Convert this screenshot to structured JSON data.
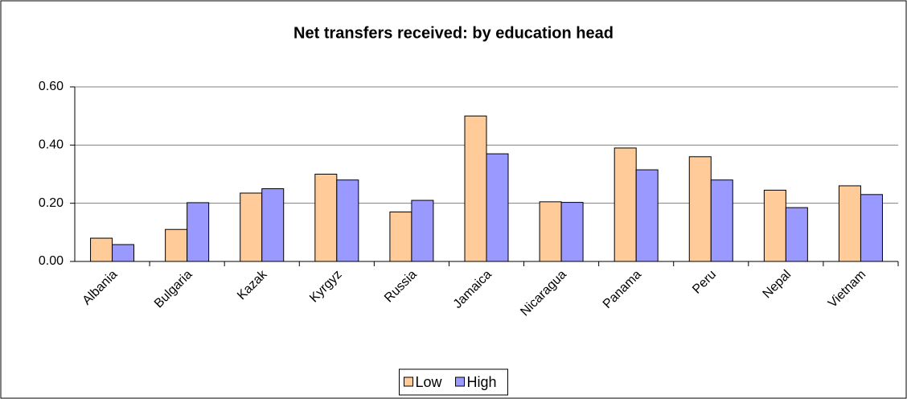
{
  "chart_data": {
    "type": "bar",
    "title": "Net transfers received: by education head",
    "categories": [
      "Albania",
      "Bulgaria",
      "Kazak",
      "Kyrgyz",
      "Russia",
      "Jamaica",
      "Nicaragua",
      "Panama",
      "Peru",
      "Nepal",
      "Vietnam"
    ],
    "series": [
      {
        "name": "Low",
        "color": "#ffcc99",
        "values": [
          0.08,
          0.11,
          0.235,
          0.3,
          0.17,
          0.5,
          0.205,
          0.39,
          0.36,
          0.245,
          0.26
        ]
      },
      {
        "name": "High",
        "color": "#9999ff",
        "values": [
          0.058,
          0.202,
          0.25,
          0.28,
          0.21,
          0.37,
          0.203,
          0.315,
          0.28,
          0.185,
          0.23
        ]
      }
    ],
    "ylim": [
      0,
      0.6
    ],
    "yticks": [
      {
        "value": 0,
        "label": "0.00"
      },
      {
        "value": 0.2,
        "label": "0.20"
      },
      {
        "value": 0.4,
        "label": "0.40"
      },
      {
        "value": 0.6,
        "label": "0.60"
      }
    ],
    "grid": true,
    "legend": "bottom"
  }
}
